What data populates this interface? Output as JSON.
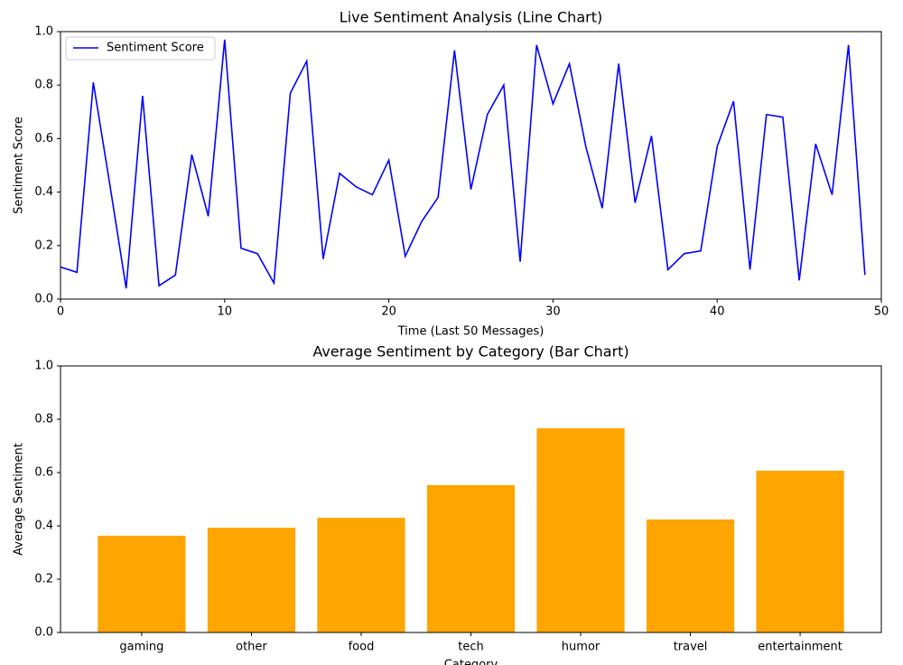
{
  "chart_data": [
    {
      "type": "line",
      "title": "Live Sentiment Analysis (Line Chart)",
      "xlabel": "Time (Last 50 Messages)",
      "ylabel": "Sentiment Score",
      "x": [
        0,
        1,
        2,
        3,
        4,
        5,
        6,
        7,
        8,
        9,
        10,
        11,
        12,
        13,
        14,
        15,
        16,
        17,
        18,
        19,
        20,
        21,
        22,
        23,
        24,
        25,
        26,
        27,
        28,
        29,
        30,
        31,
        32,
        33,
        34,
        35,
        36,
        37,
        38,
        39,
        40,
        41,
        42,
        43,
        44,
        45,
        46,
        47,
        48,
        49
      ],
      "series": [
        {
          "name": "Sentiment Score",
          "color": "#0000ff",
          "values": [
            0.12,
            0.1,
            0.81,
            0.43,
            0.04,
            0.76,
            0.05,
            0.09,
            0.54,
            0.31,
            0.97,
            0.19,
            0.17,
            0.06,
            0.77,
            0.89,
            0.15,
            0.47,
            0.42,
            0.39,
            0.52,
            0.16,
            0.29,
            0.38,
            0.93,
            0.41,
            0.69,
            0.8,
            0.14,
            0.95,
            0.73,
            0.88,
            0.57,
            0.34,
            0.88,
            0.36,
            0.61,
            0.11,
            0.17,
            0.18,
            0.57,
            0.74,
            0.11,
            0.69,
            0.68,
            0.07,
            0.58,
            0.39,
            0.95,
            0.09
          ]
        }
      ],
      "xlim": [
        0,
        50
      ],
      "xticks": [
        0,
        10,
        20,
        30,
        40,
        50
      ],
      "ylim": [
        0,
        1
      ],
      "yticks": [
        {
          "value": 0,
          "label": "0.0"
        },
        {
          "value": 0.2,
          "label": "0.2"
        },
        {
          "value": 0.4,
          "label": "0.4"
        },
        {
          "value": 0.6,
          "label": "0.6"
        },
        {
          "value": 0.8,
          "label": "0.8"
        },
        {
          "value": 1,
          "label": "1.0"
        }
      ],
      "legend": "upper left"
    },
    {
      "type": "bar",
      "title": "Average Sentiment by Category (Bar Chart)",
      "xlabel": "Category",
      "ylabel": "Average Sentiment",
      "categories": [
        "gaming",
        "other",
        "food",
        "tech",
        "humor",
        "travel",
        "entertainment"
      ],
      "values": [
        0.363,
        0.393,
        0.43,
        0.553,
        0.766,
        0.424,
        0.607
      ],
      "color": "#ffa500",
      "ylim": [
        0,
        1
      ],
      "yticks": [
        {
          "value": 0,
          "label": "0.0"
        },
        {
          "value": 0.2,
          "label": "0.2"
        },
        {
          "value": 0.4,
          "label": "0.4"
        },
        {
          "value": 0.6,
          "label": "0.6"
        },
        {
          "value": 0.8,
          "label": "0.8"
        },
        {
          "value": 1,
          "label": "1.0"
        }
      ]
    }
  ]
}
